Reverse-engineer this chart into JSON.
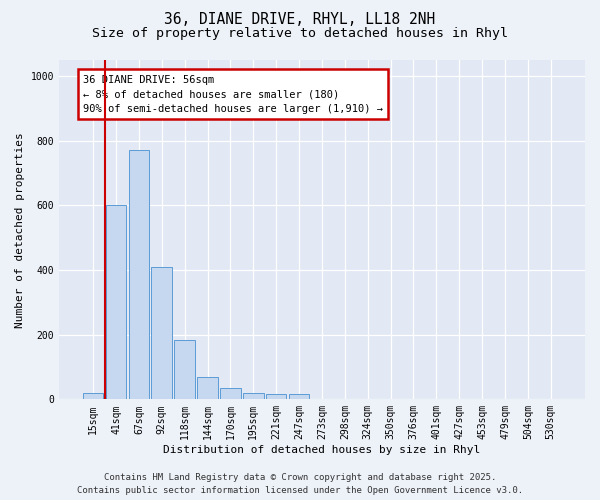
{
  "title_line1": "36, DIANE DRIVE, RHYL, LL18 2NH",
  "title_line2": "Size of property relative to detached houses in Rhyl",
  "xlabel": "Distribution of detached houses by size in Rhyl",
  "ylabel": "Number of detached properties",
  "categories": [
    "15sqm",
    "41sqm",
    "67sqm",
    "92sqm",
    "118sqm",
    "144sqm",
    "170sqm",
    "195sqm",
    "221sqm",
    "247sqm",
    "273sqm",
    "298sqm",
    "324sqm",
    "350sqm",
    "376sqm",
    "401sqm",
    "427sqm",
    "453sqm",
    "479sqm",
    "504sqm",
    "530sqm"
  ],
  "values": [
    20,
    600,
    770,
    410,
    185,
    70,
    35,
    20,
    15,
    15,
    0,
    0,
    0,
    0,
    0,
    0,
    0,
    0,
    0,
    0,
    0
  ],
  "bar_color": "#c5d8f0",
  "bar_edge_color": "#5b9bd5",
  "vline_color": "#cc0000",
  "vline_x": 0.5,
  "ylim_max": 1050,
  "yticks": [
    0,
    200,
    400,
    600,
    800,
    1000
  ],
  "annotation_text": "36 DIANE DRIVE: 56sqm\n← 8% of detached houses are smaller (180)\n90% of semi-detached houses are larger (1,910) →",
  "footer_line1": "Contains HM Land Registry data © Crown copyright and database right 2025.",
  "footer_line2": "Contains public sector information licensed under the Open Government Licence v3.0.",
  "bg_color": "#edf1f8",
  "plot_bg_color": "#e2e9f4",
  "grid_color": "#ffffff",
  "title_fontsize": 10.5,
  "subtitle_fontsize": 9.5,
  "axis_label_fontsize": 8,
  "tick_fontsize": 7,
  "annotation_fontsize": 7.5,
  "footer_fontsize": 6.5
}
